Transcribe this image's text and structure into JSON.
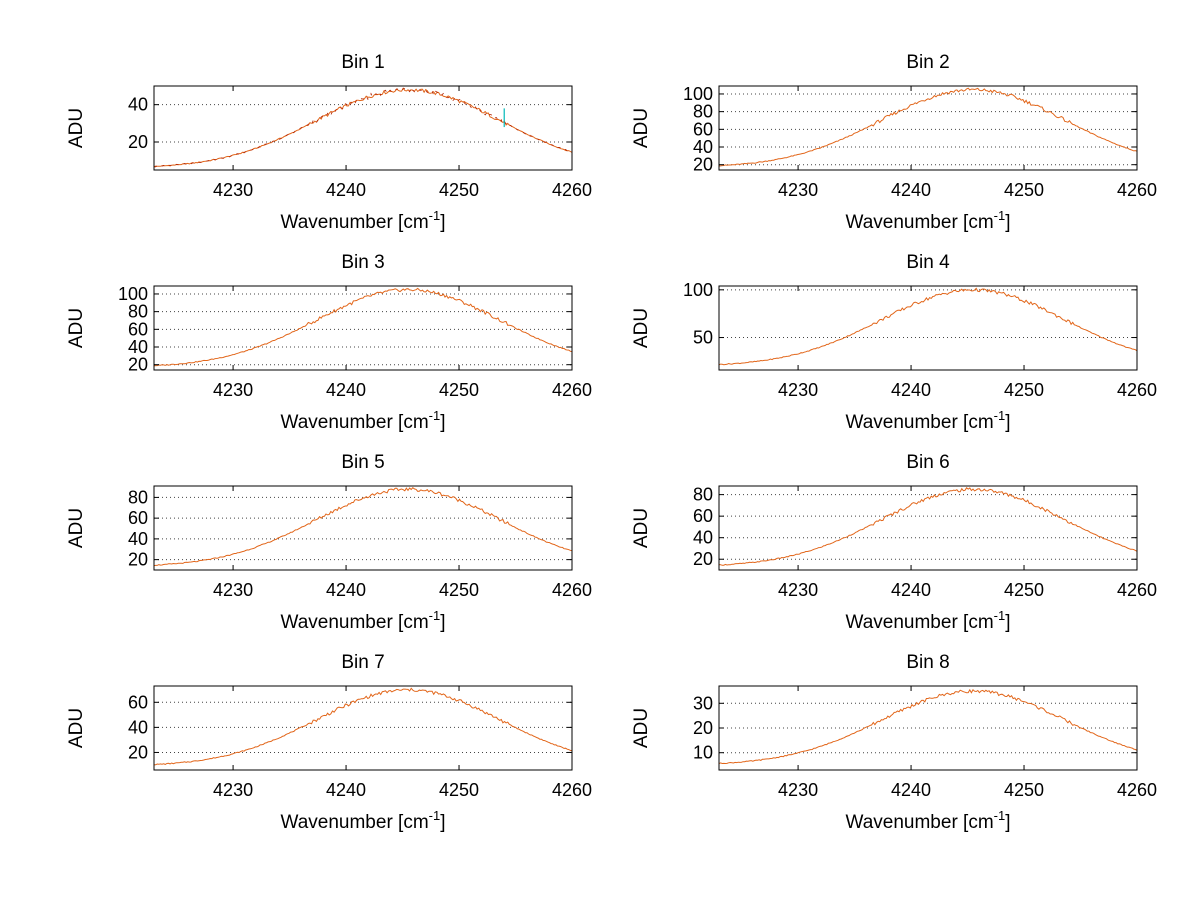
{
  "figure": {
    "background": "#ffffff",
    "rows": 4,
    "cols": 2
  },
  "chart_data": {
    "type": "line",
    "xlabel_parts": {
      "pre": "Wavenumber [cm",
      "sup": "-1",
      "post": "]"
    },
    "ylabel": "ADU",
    "xlim": [
      4223,
      4260
    ],
    "xticks": [
      4230,
      4240,
      4250,
      4260
    ],
    "x_start": 4223,
    "x_step": 1,
    "grid": "horizontal-dotted",
    "legend": "none",
    "line_color": "#e2661a",
    "profile": [
      0.022,
      0.03,
      0.042,
      0.056,
      0.075,
      0.099,
      0.128,
      0.163,
      0.204,
      0.252,
      0.307,
      0.368,
      0.434,
      0.505,
      0.579,
      0.654,
      0.727,
      0.796,
      0.858,
      0.912,
      0.954,
      0.983,
      0.998,
      0.998,
      0.983,
      0.954,
      0.912,
      0.858,
      0.796,
      0.727,
      0.654,
      0.579,
      0.505,
      0.434,
      0.368,
      0.307,
      0.252,
      0.204
    ],
    "bins": [
      {
        "label": "Bin 1",
        "baseline": 6,
        "peak": 48,
        "ylim": [
          5,
          50
        ],
        "yticks": [
          20,
          40
        ],
        "extra_line_color": "#b22200",
        "artifact": {
          "x": 4254,
          "v_from": 28,
          "v_to": 38,
          "color": "#00b8b8"
        }
      },
      {
        "label": "Bin 2",
        "baseline": 17,
        "peak": 105,
        "ylim": [
          14,
          109
        ],
        "yticks": [
          20,
          40,
          60,
          80,
          100
        ]
      },
      {
        "label": "Bin 3",
        "baseline": 17,
        "peak": 105,
        "ylim": [
          14,
          109
        ],
        "yticks": [
          20,
          40,
          60,
          80,
          100
        ]
      },
      {
        "label": "Bin 4",
        "baseline": 20,
        "peak": 100,
        "ylim": [
          16,
          104
        ],
        "yticks": [
          50,
          100
        ]
      },
      {
        "label": "Bin 5",
        "baseline": 13,
        "peak": 88,
        "ylim": [
          10,
          91
        ],
        "yticks": [
          20,
          40,
          60,
          80
        ]
      },
      {
        "label": "Bin 6",
        "baseline": 13,
        "peak": 85,
        "ylim": [
          10,
          88
        ],
        "yticks": [
          20,
          40,
          60,
          80
        ]
      },
      {
        "label": "Bin 7",
        "baseline": 9,
        "peak": 70,
        "ylim": [
          6,
          73
        ],
        "yticks": [
          20,
          40,
          60
        ]
      },
      {
        "label": "Bin 8",
        "baseline": 5,
        "peak": 35,
        "ylim": [
          3,
          37
        ],
        "yticks": [
          10,
          20,
          30
        ]
      }
    ]
  }
}
